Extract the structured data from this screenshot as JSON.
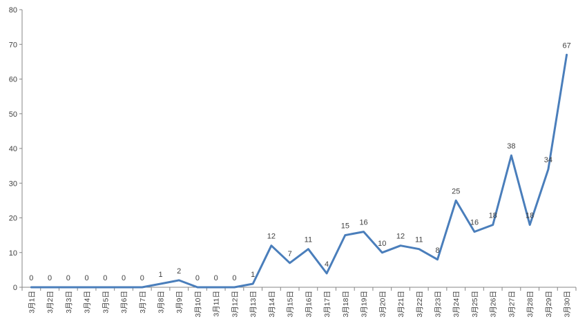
{
  "chart_data": {
    "type": "line",
    "title": "",
    "xlabel": "",
    "ylabel": "",
    "ylim": [
      0,
      80
    ],
    "yticks": [
      0,
      10,
      20,
      30,
      40,
      50,
      60,
      70,
      80
    ],
    "grid": false,
    "legend": "none",
    "line_color": "#4a7ebb",
    "categories": [
      "3月1日",
      "3月2日",
      "3月3日",
      "3月4日",
      "3月5日",
      "3月6日",
      "3月7日",
      "3月8日",
      "3月9日",
      "3月10日",
      "3月11日",
      "3月12日",
      "3月13日",
      "3月14日",
      "3月15日",
      "3月16日",
      "3月17日",
      "3月18日",
      "3月19日",
      "3月20日",
      "3月21日",
      "3月22日",
      "3月23日",
      "3月24日",
      "3月25日",
      "3月26日",
      "3月27日",
      "3月28日",
      "3月29日",
      "3月30日"
    ],
    "values": [
      0,
      0,
      0,
      0,
      0,
      0,
      0,
      1,
      2,
      0,
      0,
      0,
      1,
      12,
      7,
      11,
      4,
      15,
      16,
      10,
      12,
      11,
      8,
      25,
      16,
      18,
      38,
      18,
      34,
      67
    ]
  }
}
